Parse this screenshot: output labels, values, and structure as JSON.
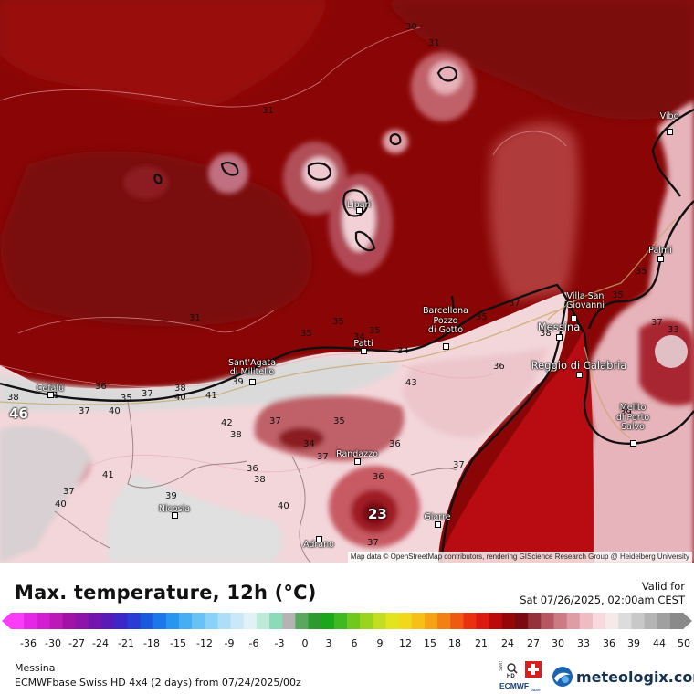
{
  "title": "Max. temperature, 12h (°C)",
  "valid": {
    "label": "Valid for",
    "datetime": "Sat 07/26/2025, 02:00am CEST"
  },
  "location": "Messina",
  "model": "ECMWFbase Swiss HD 4x4 (2 days) from  07/24/2025/00z",
  "attribution": "Map data © OpenStreetMap contributors, rendering GIScience Research Group @ Heidelberg University",
  "brand": {
    "name": "meteologix.com",
    "logo_icon": "meteologix-logo-icon",
    "partner_logos": [
      "swiss-hd-logo-icon",
      "swiss-flag-icon",
      "ecmwf-base-logo-icon"
    ]
  },
  "partner_text": {
    "swiss": "SWISS",
    "hd": "HD",
    "ecmwf": "ECMWF",
    "base": "base"
  },
  "places": [
    {
      "name": "Vibo",
      "color": "#ffffff"
    },
    {
      "name": "Lipari",
      "color": "#ffffff"
    },
    {
      "name": "Palmi",
      "color": "#ffffff"
    },
    {
      "name": "Villa San Giovanni",
      "lines": [
        "Villa San",
        "Giovanni"
      ],
      "color": "#ffffff"
    },
    {
      "name": "Messina",
      "color": "#ffffff"
    },
    {
      "name": "Barcellona Pozzo di Gotto",
      "lines": [
        "Barcellona",
        "Pozzo",
        "di Gotto"
      ],
      "color": "#ffffff"
    },
    {
      "name": "Patti",
      "color": "#ffffff"
    },
    {
      "name": "Sant'Agata di Militello",
      "lines": [
        "Sant'Agata",
        "di Militello"
      ],
      "color": "#ffffff"
    },
    {
      "name": "Cefalù",
      "color": "#ffffff"
    },
    {
      "name": "Reggio di Calabria",
      "color": "#ffffff"
    },
    {
      "name": "Melito di Porto Salvo",
      "lines": [
        "Melito",
        "di Porto",
        "Salvo"
      ],
      "color": "#ffffff"
    },
    {
      "name": "Randazzo",
      "color": "#ffffff"
    },
    {
      "name": "Nicosia",
      "color": "#ffffff"
    },
    {
      "name": "Giarre",
      "color": "#ffffff"
    },
    {
      "name": "Adrano",
      "color": "#ffffff"
    }
  ],
  "contour_labels": [
    "30",
    "31",
    "31",
    "31",
    "35",
    "35",
    "35",
    "35",
    "35",
    "35",
    "33",
    "34",
    "37",
    "38",
    "38",
    "36",
    "35",
    "37",
    "38",
    "40",
    "41",
    "42",
    "40",
    "37",
    "40",
    "37",
    "38",
    "41",
    "37",
    "35",
    "34",
    "37",
    "36",
    "37",
    "36",
    "38",
    "36",
    "43",
    "36",
    "39",
    "40",
    "39",
    "37",
    "41",
    "39",
    "34",
    "46",
    "23",
    "37"
  ],
  "scale": {
    "values": [
      "-36",
      "-30",
      "-27",
      "-24",
      "-21",
      "-18",
      "-15",
      "-12",
      "-9",
      "-6",
      "-3",
      "0",
      "3",
      "6",
      "9",
      "12",
      "15",
      "18",
      "21",
      "24",
      "27",
      "30",
      "33",
      "36",
      "39",
      "44",
      "50"
    ],
    "colors": [
      "#f83cf8",
      "#e626e6",
      "#d21ed2",
      "#bc1ab8",
      "#a212a6",
      "#8c14aa",
      "#7414ae",
      "#5a1ab8",
      "#3c28c8",
      "#2a3cd6",
      "#1a58e0",
      "#1c78ea",
      "#2896ee",
      "#46aef2",
      "#68c2f4",
      "#8ad2f6",
      "#acdef8",
      "#cae8fa",
      "#e0f2f8",
      "#bfe9d8",
      "#8adcb8",
      "#b4b4b4",
      "#5aa860",
      "#2c9a2c",
      "#1aa81a",
      "#40b820",
      "#70c81e",
      "#9ad41e",
      "#c2de20",
      "#e2e41e",
      "#f2d81a",
      "#f6c016",
      "#f6a214",
      "#f48012",
      "#f05a10",
      "#ea300e",
      "#dc1810",
      "#bc0a0a",
      "#960606",
      "#7a0a12",
      "#96303a",
      "#b65660",
      "#cc7a84",
      "#de9ca4",
      "#eebcc2",
      "#f8dade",
      "#f4eaea",
      "#dcdcdc",
      "#c8c8c8",
      "#b4b4b4",
      "#a0a0a0",
      "#8a8a8a"
    ]
  }
}
